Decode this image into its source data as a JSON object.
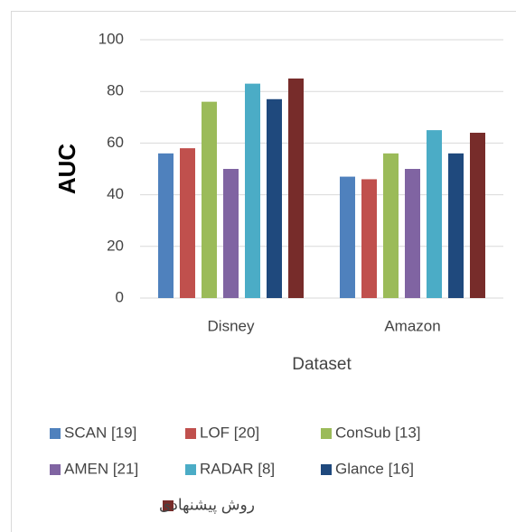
{
  "chart_data": {
    "type": "bar",
    "y_label": "AUC",
    "x_label": "Dataset",
    "categories": [
      "Disney",
      "Amazon"
    ],
    "series": [
      {
        "name": "SCAN [19]",
        "color": "#4f81bd",
        "values": [
          56,
          47
        ]
      },
      {
        "name": "LOF [20]",
        "color": "#c0504d",
        "values": [
          58,
          46
        ]
      },
      {
        "name": "ConSub [13]",
        "color": "#9bbb59",
        "values": [
          76,
          56
        ]
      },
      {
        "name": "AMEN [21]",
        "color": "#8064a2",
        "values": [
          50,
          50
        ]
      },
      {
        "name": "RADAR [8]",
        "color": "#4bacc6",
        "values": [
          83,
          65
        ]
      },
      {
        "name": "Glance [16]",
        "color": "#1f497d",
        "values": [
          77,
          56
        ]
      },
      {
        "name": "روش پیشنهادی",
        "color": "#772c2a",
        "values": [
          85,
          64
        ]
      }
    ],
    "ylim": [
      0,
      100
    ],
    "yticks": [
      0,
      20,
      40,
      60,
      80,
      100
    ],
    "grid": true,
    "legend": "bottom"
  }
}
